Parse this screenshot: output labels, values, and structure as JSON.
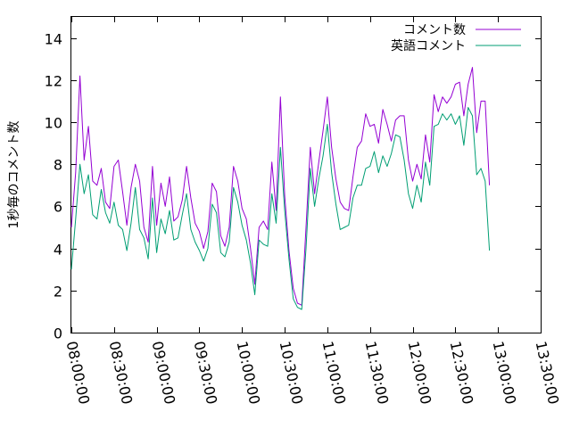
{
  "chart_data": {
    "type": "line",
    "title": "",
    "xlabel": "",
    "ylabel": "1秒毎のコメント数",
    "ylim": [
      0,
      15
    ],
    "xlim": [
      "08:00:00",
      "13:30:00"
    ],
    "grid": false,
    "legend_position": "top-right",
    "x_ticks": [
      "08:00:00",
      "08:30:00",
      "09:00:00",
      "09:30:00",
      "10:00:00",
      "10:30:00",
      "11:00:00",
      "11:30:00",
      "12:00:00",
      "12:30:00",
      "13:00:00",
      "13:30:00"
    ],
    "y_ticks": [
      "0",
      "2",
      "4",
      "6",
      "8",
      "10",
      "12",
      "14"
    ],
    "series": [
      {
        "name": "コメント数",
        "color": "#9400d3",
        "points": [
          [
            "08:00:00",
            5.0
          ],
          [
            "08:03:00",
            7.6
          ],
          [
            "08:06:00",
            12.2
          ],
          [
            "08:09:00",
            8.2
          ],
          [
            "08:12:00",
            9.8
          ],
          [
            "08:15:00",
            7.2
          ],
          [
            "08:18:00",
            7.0
          ],
          [
            "08:21:00",
            7.8
          ],
          [
            "08:24:00",
            6.2
          ],
          [
            "08:27:00",
            5.9
          ],
          [
            "08:30:00",
            7.9
          ],
          [
            "08:33:00",
            8.2
          ],
          [
            "08:36:00",
            6.7
          ],
          [
            "08:39:00",
            5.1
          ],
          [
            "08:42:00",
            6.9
          ],
          [
            "08:45:00",
            8.0
          ],
          [
            "08:48:00",
            7.2
          ],
          [
            "08:51:00",
            5.0
          ],
          [
            "08:54:00",
            4.3
          ],
          [
            "08:57:00",
            7.9
          ],
          [
            "09:00:00",
            5.1
          ],
          [
            "09:03:00",
            7.1
          ],
          [
            "09:06:00",
            6.0
          ],
          [
            "09:09:00",
            7.4
          ],
          [
            "09:12:00",
            5.3
          ],
          [
            "09:15:00",
            5.5
          ],
          [
            "09:18:00",
            6.3
          ],
          [
            "09:21:00",
            7.9
          ],
          [
            "09:24:00",
            6.4
          ],
          [
            "09:27:00",
            5.2
          ],
          [
            "09:30:00",
            4.8
          ],
          [
            "09:33:00",
            4.0
          ],
          [
            "09:36:00",
            4.8
          ],
          [
            "09:39:00",
            7.1
          ],
          [
            "09:42:00",
            6.7
          ],
          [
            "09:45:00",
            4.6
          ],
          [
            "09:48:00",
            4.1
          ],
          [
            "09:51:00",
            5.0
          ],
          [
            "09:54:00",
            7.9
          ],
          [
            "09:57:00",
            7.2
          ],
          [
            "10:00:00",
            5.9
          ],
          [
            "10:03:00",
            5.4
          ],
          [
            "10:06:00",
            4.0
          ],
          [
            "10:09:00",
            2.3
          ],
          [
            "10:12:00",
            5.0
          ],
          [
            "10:15:00",
            5.3
          ],
          [
            "10:18:00",
            4.9
          ],
          [
            "10:21:00",
            8.1
          ],
          [
            "10:24:00",
            5.8
          ],
          [
            "10:27:00",
            11.2
          ],
          [
            "10:30:00",
            6.5
          ],
          [
            "10:33:00",
            3.9
          ],
          [
            "10:36:00",
            2.1
          ],
          [
            "10:39:00",
            1.4
          ],
          [
            "10:42:00",
            1.3
          ],
          [
            "10:45:00",
            5.0
          ],
          [
            "10:48:00",
            8.8
          ],
          [
            "10:51:00",
            6.6
          ],
          [
            "10:54:00",
            8.1
          ],
          [
            "10:57:00",
            9.6
          ],
          [
            "11:00:00",
            11.2
          ],
          [
            "11:03:00",
            8.8
          ],
          [
            "11:06:00",
            7.3
          ],
          [
            "11:09:00",
            6.2
          ],
          [
            "11:12:00",
            5.9
          ],
          [
            "11:15:00",
            5.8
          ],
          [
            "11:18:00",
            7.4
          ],
          [
            "11:21:00",
            8.8
          ],
          [
            "11:24:00",
            9.1
          ],
          [
            "11:27:00",
            10.4
          ],
          [
            "11:30:00",
            9.8
          ],
          [
            "11:33:00",
            9.9
          ],
          [
            "11:36:00",
            9.0
          ],
          [
            "11:39:00",
            10.6
          ],
          [
            "11:42:00",
            9.9
          ],
          [
            "11:45:00",
            9.1
          ],
          [
            "11:48:00",
            10.1
          ],
          [
            "11:51:00",
            10.3
          ],
          [
            "11:54:00",
            10.3
          ],
          [
            "11:57:00",
            8.2
          ],
          [
            "12:00:00",
            7.2
          ],
          [
            "12:03:00",
            8.0
          ],
          [
            "12:06:00",
            7.3
          ],
          [
            "12:09:00",
            9.4
          ],
          [
            "12:12:00",
            8.1
          ],
          [
            "12:15:00",
            11.3
          ],
          [
            "12:18:00",
            10.5
          ],
          [
            "12:21:00",
            11.2
          ],
          [
            "12:24:00",
            10.9
          ],
          [
            "12:27:00",
            11.2
          ],
          [
            "12:30:00",
            11.8
          ],
          [
            "12:33:00",
            11.9
          ],
          [
            "12:36:00",
            10.3
          ],
          [
            "12:39:00",
            11.8
          ],
          [
            "12:42:00",
            12.6
          ],
          [
            "12:45:00",
            9.5
          ],
          [
            "12:48:00",
            11.0
          ],
          [
            "12:51:00",
            11.0
          ],
          [
            "12:54:00",
            7.0
          ]
        ]
      },
      {
        "name": "英語コメント",
        "color": "#009e73",
        "points": [
          [
            "08:00:00",
            3.0
          ],
          [
            "08:03:00",
            5.4
          ],
          [
            "08:06:00",
            8.0
          ],
          [
            "08:09:00",
            6.6
          ],
          [
            "08:12:00",
            7.5
          ],
          [
            "08:15:00",
            5.6
          ],
          [
            "08:18:00",
            5.4
          ],
          [
            "08:21:00",
            6.8
          ],
          [
            "08:24:00",
            5.7
          ],
          [
            "08:27:00",
            5.2
          ],
          [
            "08:30:00",
            6.2
          ],
          [
            "08:33:00",
            5.1
          ],
          [
            "08:36:00",
            4.9
          ],
          [
            "08:39:00",
            3.9
          ],
          [
            "08:42:00",
            5.2
          ],
          [
            "08:45:00",
            6.9
          ],
          [
            "08:48:00",
            4.9
          ],
          [
            "08:51:00",
            4.5
          ],
          [
            "08:54:00",
            3.5
          ],
          [
            "08:57:00",
            6.4
          ],
          [
            "09:00:00",
            3.8
          ],
          [
            "09:03:00",
            5.4
          ],
          [
            "09:06:00",
            4.7
          ],
          [
            "09:09:00",
            5.8
          ],
          [
            "09:12:00",
            4.4
          ],
          [
            "09:15:00",
            4.5
          ],
          [
            "09:18:00",
            5.6
          ],
          [
            "09:21:00",
            6.6
          ],
          [
            "09:24:00",
            4.9
          ],
          [
            "09:27:00",
            4.3
          ],
          [
            "09:30:00",
            3.9
          ],
          [
            "09:33:00",
            3.4
          ],
          [
            "09:36:00",
            4.0
          ],
          [
            "09:39:00",
            6.1
          ],
          [
            "09:42:00",
            5.7
          ],
          [
            "09:45:00",
            3.8
          ],
          [
            "09:48:00",
            3.6
          ],
          [
            "09:51:00",
            4.3
          ],
          [
            "09:54:00",
            6.9
          ],
          [
            "09:57:00",
            6.2
          ],
          [
            "10:00:00",
            5.1
          ],
          [
            "10:03:00",
            4.4
          ],
          [
            "10:06:00",
            3.3
          ],
          [
            "10:09:00",
            1.8
          ],
          [
            "10:12:00",
            4.4
          ],
          [
            "10:15:00",
            4.2
          ],
          [
            "10:18:00",
            4.1
          ],
          [
            "10:21:00",
            6.6
          ],
          [
            "10:24:00",
            5.2
          ],
          [
            "10:27:00",
            8.8
          ],
          [
            "10:30:00",
            5.8
          ],
          [
            "10:33:00",
            3.5
          ],
          [
            "10:36:00",
            1.6
          ],
          [
            "10:39:00",
            1.2
          ],
          [
            "10:42:00",
            1.1
          ],
          [
            "10:45:00",
            4.0
          ],
          [
            "10:48:00",
            7.8
          ],
          [
            "10:51:00",
            6.0
          ],
          [
            "10:54:00",
            7.3
          ],
          [
            "10:57:00",
            8.4
          ],
          [
            "11:00:00",
            9.9
          ],
          [
            "11:03:00",
            7.6
          ],
          [
            "11:06:00",
            6.1
          ],
          [
            "11:09:00",
            4.9
          ],
          [
            "11:12:00",
            5.0
          ],
          [
            "11:15:00",
            5.1
          ],
          [
            "11:18:00",
            6.4
          ],
          [
            "11:21:00",
            7.0
          ],
          [
            "11:24:00",
            7.0
          ],
          [
            "11:27:00",
            7.8
          ],
          [
            "11:30:00",
            7.9
          ],
          [
            "11:33:00",
            8.6
          ],
          [
            "11:36:00",
            7.6
          ],
          [
            "11:39:00",
            8.4
          ],
          [
            "11:42:00",
            7.9
          ],
          [
            "11:45:00",
            8.5
          ],
          [
            "11:48:00",
            9.4
          ],
          [
            "11:51:00",
            9.3
          ],
          [
            "11:54:00",
            8.2
          ],
          [
            "11:57:00",
            6.6
          ],
          [
            "12:00:00",
            5.9
          ],
          [
            "12:03:00",
            7.0
          ],
          [
            "12:06:00",
            6.2
          ],
          [
            "12:09:00",
            8.1
          ],
          [
            "12:12:00",
            7.0
          ],
          [
            "12:15:00",
            9.8
          ],
          [
            "12:18:00",
            9.9
          ],
          [
            "12:21:00",
            10.4
          ],
          [
            "12:24:00",
            10.1
          ],
          [
            "12:27:00",
            10.4
          ],
          [
            "12:30:00",
            9.9
          ],
          [
            "12:33:00",
            10.3
          ],
          [
            "12:36:00",
            8.9
          ],
          [
            "12:39:00",
            10.7
          ],
          [
            "12:42:00",
            10.3
          ],
          [
            "12:45:00",
            7.5
          ],
          [
            "12:48:00",
            7.8
          ],
          [
            "12:51:00",
            7.2
          ],
          [
            "12:54:00",
            3.9
          ]
        ]
      }
    ]
  }
}
